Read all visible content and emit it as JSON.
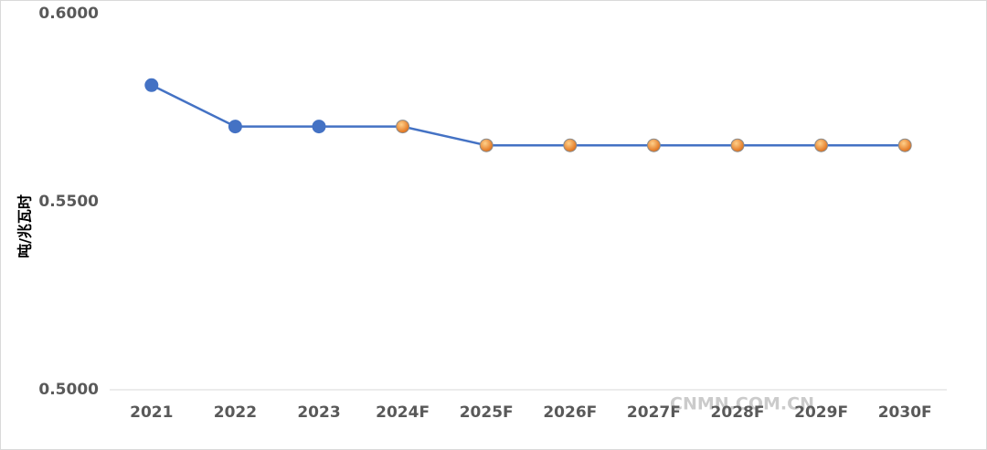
{
  "chart_data": {
    "type": "line",
    "y_label": "吨/兆瓦时",
    "watermark": "CNMN.COM.CN",
    "categories": [
      "2021",
      "2022",
      "2023",
      "2024F",
      "2025F",
      "2026F",
      "2027F",
      "2028F",
      "2029F",
      "2030F"
    ],
    "series": [
      {
        "color": "#4472c4",
        "values": [
          0.581,
          0.57,
          0.57,
          0.57,
          0.565,
          0.565,
          0.565,
          0.565,
          0.565,
          0.565
        ],
        "marker_colors": [
          "#4472c4",
          "#4472c4",
          "#4472c4",
          "#ed7d31",
          "#ed7d31",
          "#ed7d31",
          "#ed7d31",
          "#ed7d31",
          "#ed7d31",
          "#ed7d31"
        ]
      }
    ],
    "ylim": [
      0.5,
      0.6
    ],
    "yticks": [
      {
        "value": 0.5,
        "label": "0.5000"
      },
      {
        "value": 0.55,
        "label": "0.5500"
      },
      {
        "value": 0.6,
        "label": "0.6000"
      }
    ],
    "grid": false
  }
}
